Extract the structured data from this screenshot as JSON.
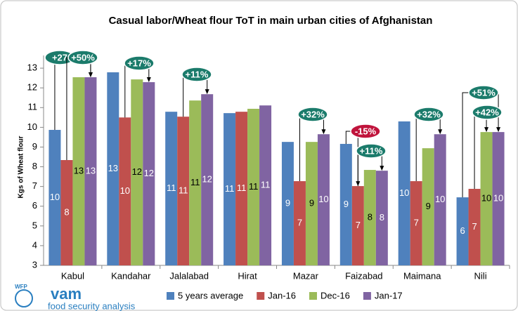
{
  "chart_data": {
    "type": "bar",
    "title": "Casual labor/Wheat  flour ToT in main urban cities of Afghanistan",
    "y_label": "Kgs of Wheat flour",
    "categories": [
      "Kabul",
      "Kandahar",
      "Jalalabad",
      "Hirat",
      "Mazar",
      "Faizabad",
      "Maimana",
      "Nili"
    ],
    "series": [
      {
        "name": "5 years average",
        "color": "#4f81bd",
        "values": [
          9.87,
          12.79,
          10.79,
          10.72,
          9.26,
          9.16,
          10.3,
          6.45
        ],
        "value_labels": [
          10,
          13,
          11,
          11,
          9,
          9,
          10,
          6
        ]
      },
      {
        "name": "Jan-16",
        "color": "#c0504d",
        "values": [
          8.34,
          10.5,
          10.54,
          10.79,
          7.27,
          7.02,
          7.27,
          6.88
        ],
        "value_labels": [
          8,
          10,
          11,
          11,
          7,
          7,
          7,
          7
        ]
      },
      {
        "name": "Dec-16",
        "color": "#9bbb59",
        "values": [
          12.54,
          12.43,
          11.36,
          10.94,
          9.26,
          7.84,
          8.94,
          9.76
        ],
        "value_labels": [
          13,
          12,
          11,
          11,
          9,
          8,
          9,
          10
        ]
      },
      {
        "name": "Jan-17",
        "color": "#8064a2",
        "values": [
          12.54,
          12.29,
          11.68,
          11.11,
          9.65,
          7.8,
          9.65,
          9.76
        ],
        "value_labels": [
          13,
          12,
          12,
          11,
          10,
          8,
          10,
          10
        ]
      }
    ],
    "ylim": [
      3,
      14
    ],
    "yticks": [
      3,
      4,
      5,
      6,
      7,
      8,
      9,
      10,
      11,
      12,
      13
    ],
    "grid": false,
    "legend": "bottom",
    "annotations": [
      {
        "text": "+27",
        "color": "#1b7b6b"
      },
      {
        "text": "+50%",
        "color": "#1b7b6b"
      },
      {
        "text": "+17%",
        "color": "#1b7b6b"
      },
      {
        "text": "+11%",
        "color": "#1b7b6b"
      },
      {
        "text": "+32%",
        "color": "#1b7b6b"
      },
      {
        "text": "-15%",
        "color": "#c0143c"
      },
      {
        "text": "+11%",
        "color": "#1b7b6b"
      },
      {
        "text": "+32%",
        "color": "#1b7b6b"
      },
      {
        "text": "+51%",
        "color": "#1b7b6b"
      },
      {
        "text": "+42%",
        "color": "#1b7b6b"
      }
    ],
    "logo": {
      "org": "WFP",
      "name": "vam",
      "tagline": "food security analysis"
    }
  }
}
